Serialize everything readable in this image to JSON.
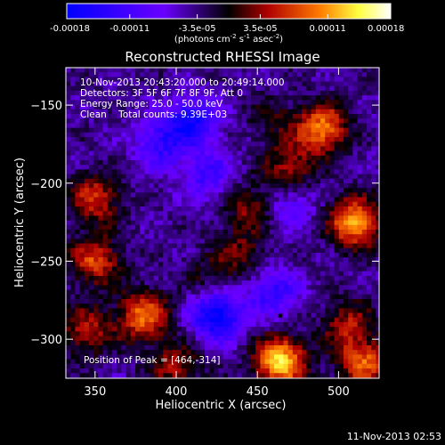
{
  "colorbar": {
    "tick_labels": [
      "-0.00018",
      "-0.00011",
      "-3.5e-05",
      "3.5e-05",
      "0.00011",
      "0.00018"
    ],
    "tick_values": [
      -0.00018,
      -0.00011,
      -3.5e-05,
      3.5e-05,
      0.00011,
      0.00018
    ],
    "range": [
      -0.00018,
      0.00018
    ],
    "units_prefix": "(photons cm",
    "units_exp1": "-2",
    "units_mid": " s",
    "units_exp2": "-1",
    "units_mid2": " asec",
    "units_exp3": "-2",
    "units_suffix": ")",
    "colors": [
      "#0000ff",
      "#6a00ff",
      "#000000",
      "#b00000",
      "#ff7a00",
      "#ffff40",
      "#ffffff"
    ]
  },
  "chart_data": {
    "type": "heatmap",
    "title": "Reconstructed RHESSI Image",
    "xlabel": "Heliocentric X (arcsec)",
    "ylabel": "Heliocentric Y (arcsec)",
    "xlim": [
      332,
      525
    ],
    "ylim": [
      -325,
      -126
    ],
    "xticks": [
      350,
      400,
      450,
      500
    ],
    "yticks": [
      -150,
      -200,
      -250,
      -300
    ],
    "annotations": [
      "10-Nov-2013 20:43:20.000 to 20:49:14.000",
      "Detectors: 3F 5F 6F 7F 8F 9F, Att 0",
      "Energy Range: 25.0 - 50.0 keV",
      "Clean    Total counts: 9.39E+03",
      "Position of Peak = [464,-314]"
    ],
    "peak": [
      464,
      -314
    ],
    "hot_spots": [
      {
        "x": 350,
        "y": -210,
        "v": 0.0001
      },
      {
        "x": 350,
        "y": -250,
        "v": 0.00011
      },
      {
        "x": 380,
        "y": -285,
        "v": 0.00013
      },
      {
        "x": 345,
        "y": -295,
        "v": 9e-05
      },
      {
        "x": 400,
        "y": -318,
        "v": 8e-05
      },
      {
        "x": 445,
        "y": -215,
        "v": 7e-05
      },
      {
        "x": 440,
        "y": -245,
        "v": 6e-05
      },
      {
        "x": 460,
        "y": -160,
        "v": 4e-05
      },
      {
        "x": 490,
        "y": -165,
        "v": 0.00014
      },
      {
        "x": 470,
        "y": -190,
        "v": 8e-05
      },
      {
        "x": 510,
        "y": -225,
        "v": 0.00016
      },
      {
        "x": 505,
        "y": -290,
        "v": 8e-05
      },
      {
        "x": 464,
        "y": -314,
        "v": 0.00018
      },
      {
        "x": 515,
        "y": -315,
        "v": 0.00012
      },
      {
        "x": 420,
        "y": -260,
        "v": 4e-05
      }
    ],
    "cold_spots": [
      {
        "x": 410,
        "y": -160,
        "v": -0.00012
      },
      {
        "x": 420,
        "y": -195,
        "v": -8e-05
      },
      {
        "x": 425,
        "y": -285,
        "v": -0.00015
      },
      {
        "x": 460,
        "y": -270,
        "v": -9e-05
      },
      {
        "x": 390,
        "y": -175,
        "v": -9e-05
      },
      {
        "x": 470,
        "y": -215,
        "v": -6e-05
      }
    ]
  },
  "footer_date": "11-Nov-2013 02:53"
}
